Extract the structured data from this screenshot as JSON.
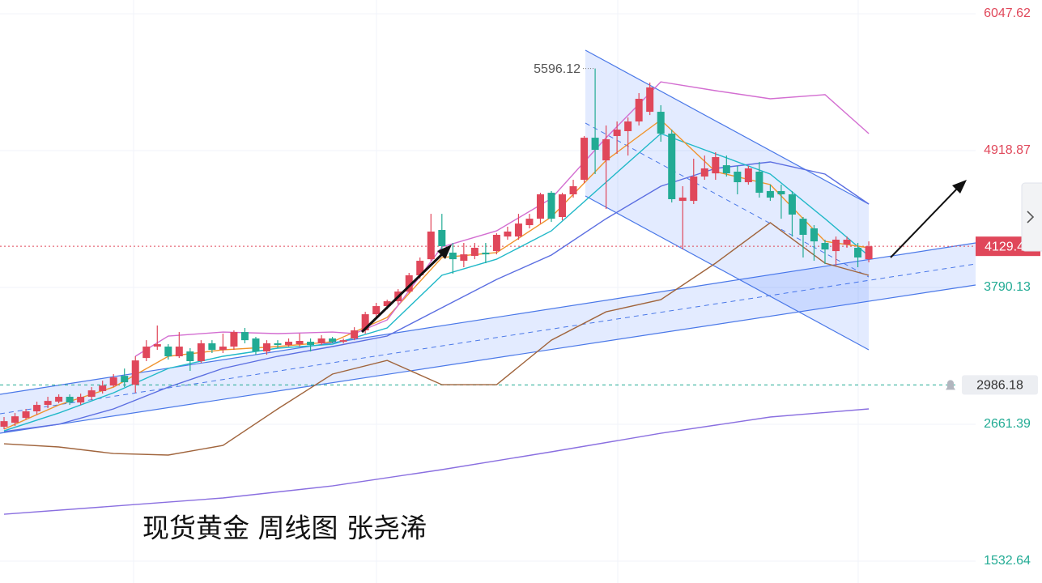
{
  "chart_data": {
    "type": "candlestick",
    "title": "现货黄金 周线图 张尧浠",
    "ylim": [
      1352,
      6161
    ],
    "yticks": [
      6047.62,
      4918.87,
      3790.13,
      2661.39,
      1532.64
    ],
    "grid": true,
    "up_color": "#e0475a",
    "down_color": "#22ab94",
    "candles": {
      "open": [
        2641,
        2674,
        2714,
        2768,
        2821,
        2848,
        2888,
        2841,
        2888,
        2935,
        2981,
        3061,
        2988,
        3208,
        3302,
        3302,
        3222,
        3262,
        3182,
        3329,
        3275,
        3302,
        3422,
        3369,
        3262,
        3329,
        3315,
        3322,
        3342,
        3329,
        3369,
        3342,
        3369,
        3436,
        3569,
        3636,
        3676,
        3756,
        3890,
        4023,
        4264,
        4077,
        4010,
        4050,
        4077,
        4090,
        4210,
        4210,
        4304,
        4357,
        4571,
        4371,
        4558,
        4678,
        5025,
        4838,
        5039,
        5079,
        5159,
        5239,
        5239,
        5059,
        4504,
        4504,
        4705,
        4731,
        4798,
        4745,
        4658,
        4745,
        4585,
        4585,
        4558,
        4357,
        4277,
        4157,
        4090,
        4144,
        4117,
        4023
      ],
      "high": [
        2721,
        2754,
        2788,
        2848,
        2888,
        2908,
        2908,
        2914,
        2968,
        3021,
        3075,
        3121,
        3222,
        3355,
        3476,
        3322,
        3422,
        3289,
        3355,
        3355,
        3409,
        3436,
        3456,
        3382,
        3355,
        3355,
        3369,
        3409,
        3369,
        3396,
        3382,
        3369,
        3462,
        3589,
        3663,
        3689,
        3776,
        3910,
        4037,
        4397,
        4397,
        4157,
        4157,
        4157,
        4157,
        4237,
        4291,
        4397,
        4397,
        4571,
        4585,
        4571,
        4678,
        5039,
        5596.12,
        5126,
        5159,
        5192,
        5393,
        5480,
        5293,
        5092,
        4625,
        4852,
        4878,
        4905,
        4878,
        4792,
        4792,
        4825,
        4638,
        4638,
        4585,
        4371,
        4304,
        4184,
        4210,
        4210,
        4157,
        4170
      ],
      "low": [
        2621,
        2647,
        2701,
        2741,
        2794,
        2834,
        2821,
        2821,
        2861,
        2915,
        2968,
        2968,
        2921,
        3182,
        3275,
        3195,
        3208,
        3102,
        3168,
        3249,
        3249,
        3275,
        3329,
        3235,
        3235,
        3289,
        3302,
        3302,
        3262,
        3315,
        3329,
        3329,
        3355,
        3409,
        3543,
        3609,
        3649,
        3743,
        3863,
        4010,
        4090,
        3903,
        3957,
        4023,
        3990,
        4063,
        4184,
        4184,
        4277,
        4317,
        4331,
        4344,
        4531,
        4651,
        4725,
        4437,
        4892,
        4878,
        5126,
        5212,
        4992,
        4491,
        4104,
        4478,
        4678,
        4678,
        4705,
        4558,
        4638,
        4531,
        4504,
        4357,
        4210,
        4037,
        4010,
        3983,
        3970,
        4117,
        3957,
        3997
      ],
      "close": [
        2687,
        2727,
        2768,
        2821,
        2854,
        2888,
        2841,
        2888,
        2941,
        2981,
        3048,
        3008,
        3188,
        3302,
        3322,
        3222,
        3302,
        3182,
        3329,
        3275,
        3302,
        3422,
        3355,
        3262,
        3329,
        3315,
        3342,
        3349,
        3315,
        3369,
        3342,
        3355,
        3436,
        3569,
        3636,
        3676,
        3756,
        3890,
        4010,
        4251,
        4130,
        4023,
        4063,
        4117,
        4063,
        4224,
        4251,
        4317,
        4357,
        4558,
        4357,
        4558,
        4625,
        5025,
        4925,
        5012,
        5092,
        5159,
        5346,
        5440,
        5059,
        4518,
        4531,
        4705,
        4772,
        4865,
        4731,
        4658,
        4772,
        4571,
        4531,
        4558,
        4391,
        4224,
        4170,
        4103,
        4184,
        4184,
        4037,
        4129.42
      ]
    },
    "lines": [
      {
        "color": "#8a6fe0",
        "x": [
          0,
          10,
          20,
          30,
          40,
          50,
          60,
          70,
          79
        ],
        "values": [
          1919,
          1986,
          2053,
          2153,
          2287,
          2434,
          2587,
          2721,
          2788
        ]
      },
      {
        "color": "#a0643c",
        "x": [
          0,
          5,
          10,
          15,
          20,
          25,
          30,
          35,
          40,
          45,
          50,
          55,
          60,
          65,
          70,
          75,
          79
        ],
        "values": [
          2500,
          2474,
          2420,
          2407,
          2487,
          2788,
          3075,
          3188,
          2988,
          2988,
          3355,
          3589,
          3689,
          3990,
          4324,
          3990,
          3890
        ]
      },
      {
        "color": "#5b6ee1",
        "x": [
          0,
          5,
          10,
          15,
          20,
          25,
          30,
          35,
          40,
          45,
          50,
          55,
          60,
          65,
          70,
          75,
          79
        ],
        "values": [
          2601,
          2661,
          2788,
          2968,
          3122,
          3222,
          3302,
          3389,
          3623,
          3856,
          4057,
          4357,
          4625,
          4772,
          4825,
          4725,
          4478
        ]
      },
      {
        "color": "#20b8c8",
        "x": [
          0,
          5,
          10,
          15,
          20,
          25,
          30,
          35,
          40,
          45,
          50,
          55,
          60,
          65,
          70,
          75,
          79
        ],
        "values": [
          2607,
          2754,
          2921,
          3122,
          3222,
          3289,
          3322,
          3456,
          3890,
          4023,
          4257,
          4658,
          5059,
          4892,
          4725,
          4357,
          4050
        ]
      },
      {
        "color": "#f0932b",
        "x": [
          0,
          5,
          10,
          15,
          20,
          25,
          30,
          35,
          40,
          45,
          50,
          55,
          60,
          65,
          70,
          75,
          79
        ],
        "values": [
          2621,
          2821,
          2968,
          3222,
          3275,
          3302,
          3342,
          3543,
          4037,
          4077,
          4371,
          4838,
          5172,
          4745,
          4638,
          4170,
          4117
        ]
      },
      {
        "color": "#d36ed1",
        "x": [
          12,
          15,
          20,
          25,
          30,
          32,
          35,
          40,
          45,
          50,
          55,
          60,
          65,
          70,
          75,
          79
        ],
        "values": [
          3222,
          3389,
          3422,
          3409,
          3422,
          3409,
          3522,
          4124,
          4257,
          4524,
          5025,
          5486,
          5413,
          5346,
          5380,
          5059
        ]
      }
    ],
    "alert": 2986.18
  }
}
